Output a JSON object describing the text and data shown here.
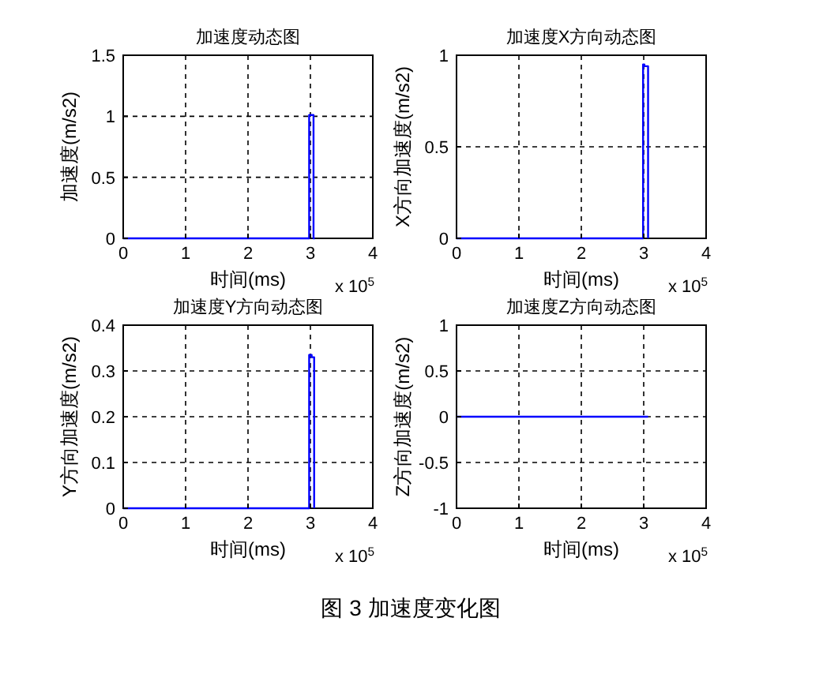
{
  "chart_data": [
    {
      "type": "line",
      "title": "加速度动态图",
      "xlabel": "时间(ms)",
      "ylabel": "加速度(m/s2)",
      "xlim": [
        0,
        4
      ],
      "xticks": [
        0,
        1,
        2,
        3,
        4
      ],
      "ylim": [
        0,
        1.5
      ],
      "yticks": [
        0,
        0.5,
        1,
        1.5
      ],
      "grid": true,
      "annotations": [
        "x 10$^{5}$",
        "图 3  加速度变化图"
      ],
      "series": [
        {
          "color": "#0000ff",
          "x": [
            0,
            2.98,
            2.98,
            3.05,
            3.05,
            3.07
          ],
          "values": [
            0,
            0,
            1.01,
            1.01,
            0,
            0
          ]
        }
      ]
    },
    {
      "type": "line",
      "title": "加速度X方向动态图",
      "xlabel": "时间(ms)",
      "ylabel": "X方向加速度(m/s2)",
      "xlim": [
        0,
        4
      ],
      "xticks": [
        0,
        1,
        2,
        3,
        4
      ],
      "ylim": [
        0,
        1
      ],
      "yticks": [
        0,
        0.5,
        1
      ],
      "grid": true,
      "annotations": [
        "x 10$^{5}$"
      ],
      "series": [
        {
          "color": "#0000ff",
          "x": [
            0,
            2.99,
            2.99,
            3.01,
            3.01,
            3.07,
            3.07
          ],
          "values": [
            0,
            0,
            0.95,
            0.95,
            0.94,
            0.94,
            0
          ]
        }
      ]
    },
    {
      "type": "line",
      "title": "加速度Y方向动态图",
      "xlabel": "时间(ms)",
      "ylabel": "Y方向加速度(m/s2)",
      "xlim": [
        0,
        4
      ],
      "xticks": [
        0,
        1,
        2,
        3,
        4
      ],
      "ylim": [
        0,
        0.4
      ],
      "yticks": [
        0,
        0.1,
        0.2,
        0.3,
        0.4
      ],
      "grid": true,
      "annotations": [
        "x 10$^{5}$"
      ],
      "series": [
        {
          "color": "#0000ff",
          "x": [
            0,
            2.98,
            2.98,
            3.02,
            3.02,
            3.06,
            3.06
          ],
          "values": [
            0,
            0,
            0.335,
            0.335,
            0.33,
            0.33,
            0
          ]
        }
      ]
    },
    {
      "type": "line",
      "title": "加速度Z方向动态图",
      "xlabel": "时间(ms)",
      "ylabel": "Z方向加速度(m/s2)",
      "xlim": [
        0,
        4
      ],
      "xticks": [
        0,
        1,
        2,
        3,
        4
      ],
      "ylim": [
        -1,
        1
      ],
      "yticks": [
        -1,
        -0.5,
        0,
        0.5,
        1
      ],
      "grid": true,
      "annotations": [
        "x 10$^{5}$"
      ],
      "series": [
        {
          "color": "#0000ff",
          "x": [
            0,
            3.07
          ],
          "values": [
            0,
            0
          ]
        }
      ]
    }
  ]
}
